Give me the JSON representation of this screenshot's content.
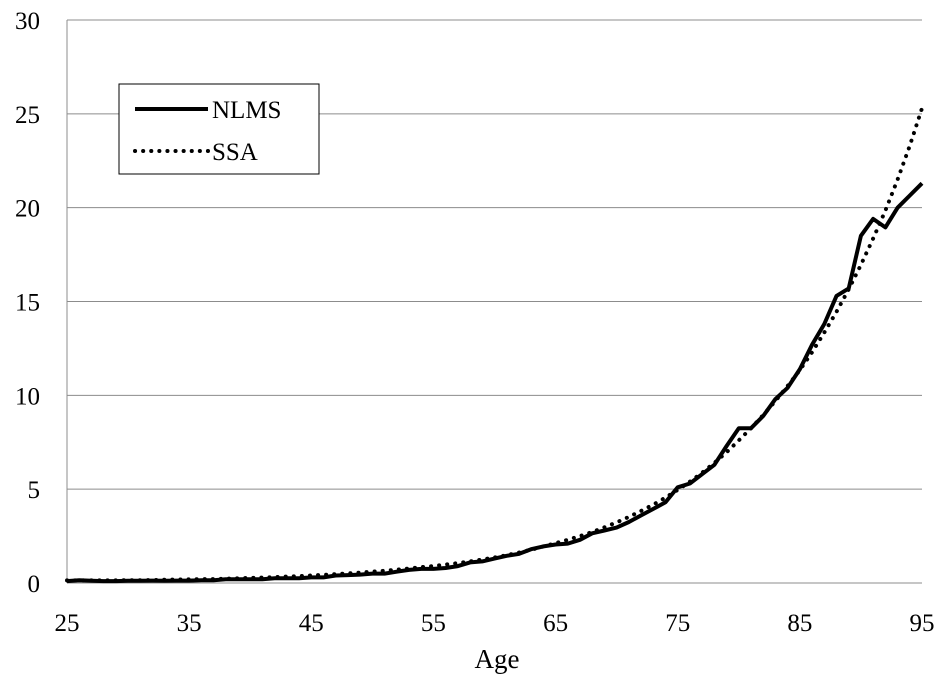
{
  "chart_data": {
    "type": "line",
    "title": "",
    "xlabel": "Age",
    "ylabel": "",
    "xlim": [
      25,
      95
    ],
    "ylim": [
      0,
      30
    ],
    "x_ticks": [
      25,
      35,
      45,
      55,
      65,
      75,
      85,
      95
    ],
    "y_ticks": [
      0,
      5,
      10,
      15,
      20,
      25,
      30
    ],
    "grid": "horizontal",
    "legend_position": "top-left",
    "series": [
      {
        "name": "NLMS",
        "style": "solid",
        "color": "#000000",
        "points": [
          [
            25,
            0.1
          ],
          [
            26,
            0.15
          ],
          [
            27,
            0.12
          ],
          [
            28,
            0.1
          ],
          [
            29,
            0.1
          ],
          [
            30,
            0.12
          ],
          [
            31,
            0.12
          ],
          [
            32,
            0.13
          ],
          [
            33,
            0.12
          ],
          [
            34,
            0.13
          ],
          [
            35,
            0.13
          ],
          [
            36,
            0.15
          ],
          [
            37,
            0.15
          ],
          [
            38,
            0.2
          ],
          [
            39,
            0.2
          ],
          [
            40,
            0.2
          ],
          [
            41,
            0.2
          ],
          [
            42,
            0.25
          ],
          [
            43,
            0.25
          ],
          [
            44,
            0.25
          ],
          [
            45,
            0.3
          ],
          [
            46,
            0.3
          ],
          [
            47,
            0.4
          ],
          [
            48,
            0.42
          ],
          [
            49,
            0.45
          ],
          [
            50,
            0.5
          ],
          [
            51,
            0.5
          ],
          [
            52,
            0.6
          ],
          [
            53,
            0.7
          ],
          [
            54,
            0.75
          ],
          [
            55,
            0.75
          ],
          [
            56,
            0.8
          ],
          [
            57,
            0.9
          ],
          [
            58,
            1.1
          ],
          [
            59,
            1.15
          ],
          [
            60,
            1.3
          ],
          [
            61,
            1.45
          ],
          [
            62,
            1.55
          ],
          [
            63,
            1.8
          ],
          [
            64,
            1.95
          ],
          [
            65,
            2.05
          ],
          [
            66,
            2.1
          ],
          [
            67,
            2.3
          ],
          [
            68,
            2.65
          ],
          [
            69,
            2.8
          ],
          [
            70,
            2.95
          ],
          [
            71,
            3.25
          ],
          [
            72,
            3.6
          ],
          [
            73,
            3.95
          ],
          [
            74,
            4.3
          ],
          [
            75,
            5.1
          ],
          [
            76,
            5.3
          ],
          [
            77,
            5.8
          ],
          [
            78,
            6.3
          ],
          [
            79,
            7.3
          ],
          [
            80,
            8.25
          ],
          [
            81,
            8.25
          ],
          [
            82,
            8.9
          ],
          [
            83,
            9.8
          ],
          [
            84,
            10.4
          ],
          [
            85,
            11.4
          ],
          [
            86,
            12.7
          ],
          [
            87,
            13.8
          ],
          [
            88,
            15.3
          ],
          [
            89,
            15.7
          ],
          [
            90,
            18.5
          ],
          [
            91,
            19.4
          ],
          [
            92,
            18.95
          ],
          [
            93,
            20.0
          ],
          [
            94,
            20.65
          ],
          [
            95,
            21.3
          ]
        ]
      },
      {
        "name": "SSA",
        "style": "dotted",
        "color": "#000000",
        "points": [
          [
            25,
            0.14
          ],
          [
            26,
            0.14
          ],
          [
            27,
            0.14
          ],
          [
            28,
            0.14
          ],
          [
            29,
            0.14
          ],
          [
            30,
            0.15
          ],
          [
            31,
            0.15
          ],
          [
            32,
            0.16
          ],
          [
            33,
            0.17
          ],
          [
            34,
            0.18
          ],
          [
            35,
            0.19
          ],
          [
            36,
            0.2
          ],
          [
            37,
            0.21
          ],
          [
            38,
            0.23
          ],
          [
            39,
            0.25
          ],
          [
            40,
            0.27
          ],
          [
            41,
            0.29
          ],
          [
            42,
            0.31
          ],
          [
            43,
            0.34
          ],
          [
            44,
            0.37
          ],
          [
            45,
            0.4
          ],
          [
            46,
            0.43
          ],
          [
            47,
            0.47
          ],
          [
            48,
            0.51
          ],
          [
            49,
            0.55
          ],
          [
            50,
            0.6
          ],
          [
            51,
            0.65
          ],
          [
            52,
            0.71
          ],
          [
            53,
            0.77
          ],
          [
            54,
            0.84
          ],
          [
            55,
            0.9
          ],
          [
            56,
            0.98
          ],
          [
            57,
            1.06
          ],
          [
            58,
            1.15
          ],
          [
            59,
            1.25
          ],
          [
            60,
            1.36
          ],
          [
            61,
            1.48
          ],
          [
            62,
            1.62
          ],
          [
            63,
            1.77
          ],
          [
            64,
            1.95
          ],
          [
            65,
            2.12
          ],
          [
            66,
            2.3
          ],
          [
            67,
            2.5
          ],
          [
            68,
            2.72
          ],
          [
            69,
            2.97
          ],
          [
            70,
            3.23
          ],
          [
            71,
            3.52
          ],
          [
            72,
            3.84
          ],
          [
            73,
            4.18
          ],
          [
            74,
            4.55
          ],
          [
            75,
            4.96
          ],
          [
            76,
            5.4
          ],
          [
            77,
            5.88
          ],
          [
            78,
            6.4
          ],
          [
            79,
            6.97
          ],
          [
            80,
            7.6
          ],
          [
            81,
            8.25
          ],
          [
            82,
            8.95
          ],
          [
            83,
            9.7
          ],
          [
            84,
            10.5
          ],
          [
            85,
            11.35
          ],
          [
            86,
            12.3
          ],
          [
            87,
            13.35
          ],
          [
            88,
            14.45
          ],
          [
            89,
            15.65
          ],
          [
            90,
            16.95
          ],
          [
            91,
            18.35
          ],
          [
            92,
            19.85
          ],
          [
            93,
            21.5
          ],
          [
            94,
            23.3
          ],
          [
            95,
            25.3
          ]
        ]
      }
    ]
  }
}
